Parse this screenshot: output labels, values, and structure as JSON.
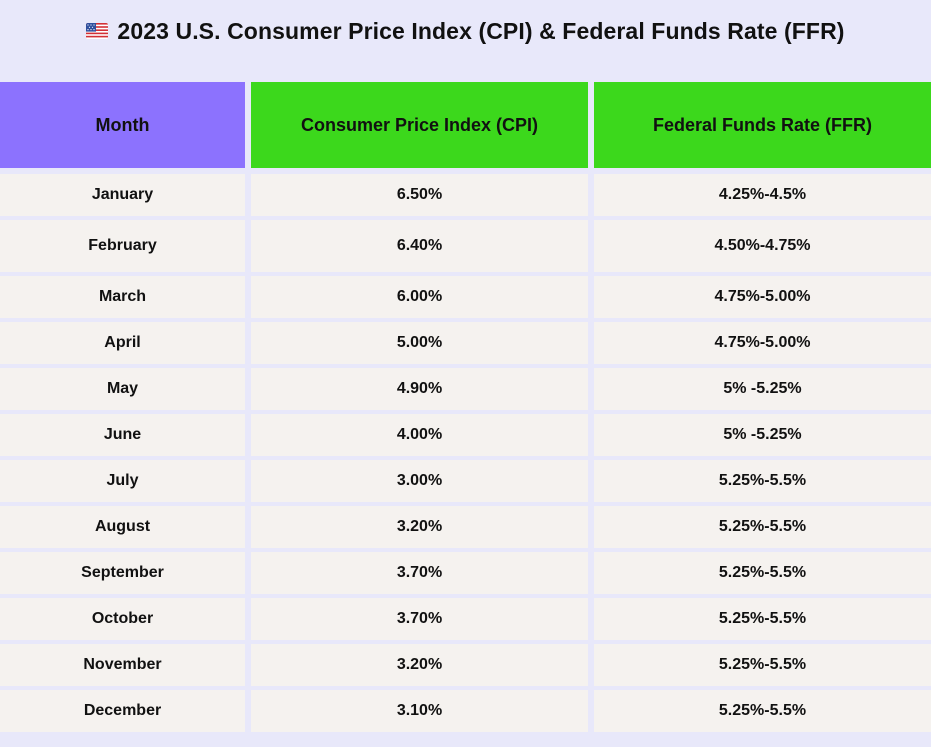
{
  "title": "2023 U.S. Consumer Price Index (CPI) & Federal Funds Rate (FFR)",
  "flag_icon": "us-flag-icon",
  "colors": {
    "background": "#e8e8fa",
    "month_header": "#8c72fe",
    "value_header": "#3cd81c",
    "cell": "#f5f2ef"
  },
  "chart_data": {
    "type": "table",
    "title": "2023 U.S. Consumer Price Index (CPI) & Federal Funds Rate (FFR)",
    "columns": [
      "Month",
      "Consumer Price Index (CPI)",
      "Federal Funds Rate (FFR)"
    ],
    "rows": [
      [
        "January",
        "6.50%",
        "4.25%-4.5%"
      ],
      [
        "February",
        "6.40%",
        "4.50%-4.75%"
      ],
      [
        "March",
        "6.00%",
        "4.75%-5.00%"
      ],
      [
        "April",
        "5.00%",
        "4.75%-5.00%"
      ],
      [
        "May",
        "4.90%",
        "5% -5.25%"
      ],
      [
        "June",
        "4.00%",
        "5% -5.25%"
      ],
      [
        "July",
        "3.00%",
        "5.25%-5.5%"
      ],
      [
        "August",
        "3.20%",
        "5.25%-5.5%"
      ],
      [
        "September",
        "3.70%",
        "5.25%-5.5%"
      ],
      [
        "October",
        "3.70%",
        "5.25%-5.5%"
      ],
      [
        "November",
        "3.20%",
        "5.25%-5.5%"
      ],
      [
        "December",
        "3.10%",
        "5.25%-5.5%"
      ]
    ]
  }
}
